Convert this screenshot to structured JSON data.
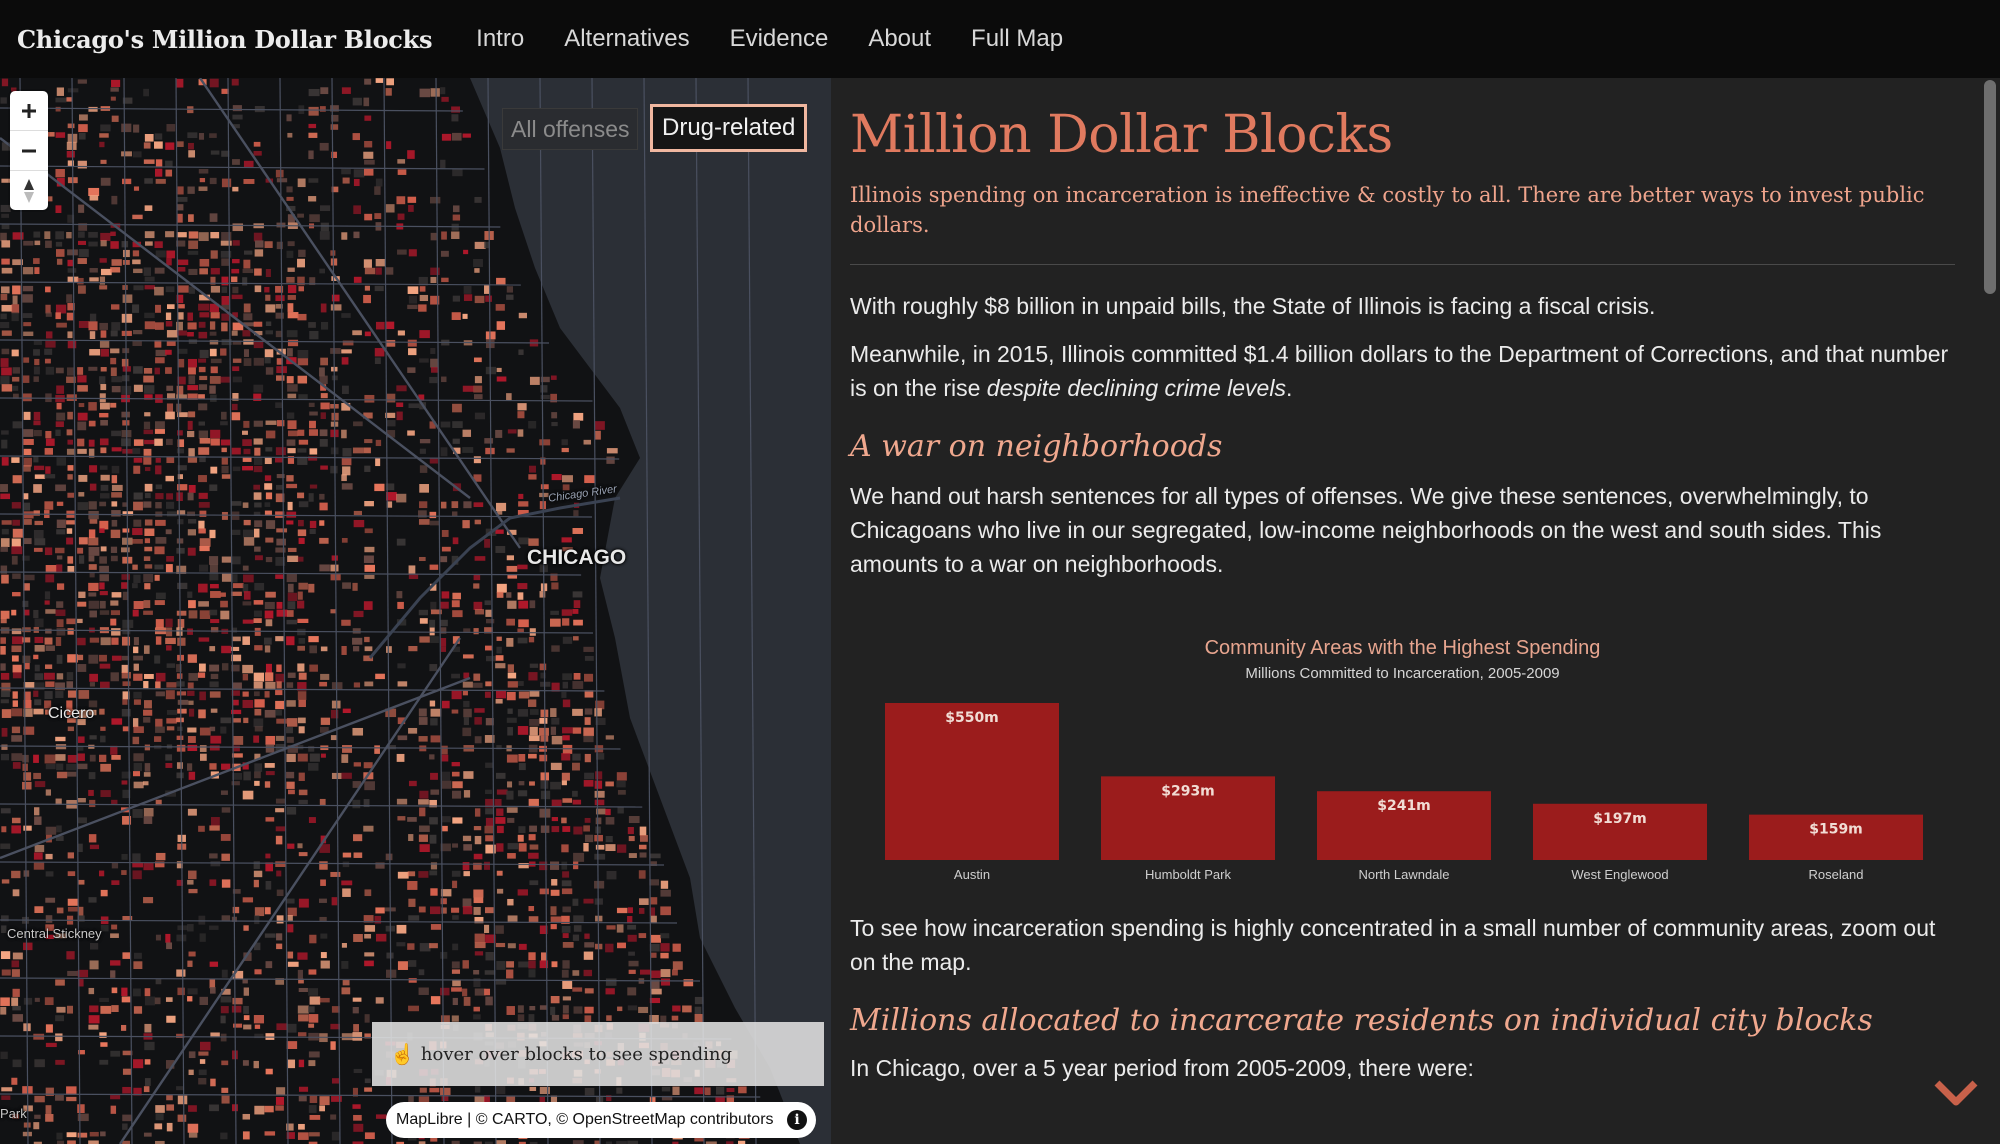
{
  "nav": {
    "brand": "Chicago's Million Dollar Blocks",
    "links": [
      "Intro",
      "Alternatives",
      "Evidence",
      "About",
      "Full Map"
    ]
  },
  "map": {
    "zoom_in_icon": "plus-icon",
    "zoom_out_icon": "minus-icon",
    "compass_icon": "compass-icon",
    "toggle_all": "All offenses",
    "toggle_drug": "Drug-related",
    "labels": {
      "chicago": "CHICAGO",
      "chicago_river": "Chicago River",
      "cicero": "Cicero",
      "central_stickney": "Central Stickney",
      "park": "Park"
    },
    "hover_hint": "hover over blocks to see spending",
    "attribution": "MapLibre | © CARTO, © OpenStreetMap contributors",
    "info_icon": "info-icon",
    "colors": {
      "block_light": "#f4a582",
      "block_mid": "#e8765c",
      "block_dark": "#d6604d",
      "block_red": "#b2182b",
      "water": "#2b2f36",
      "land": "#111214"
    }
  },
  "article": {
    "title": "Million Dollar Blocks",
    "subtitle": "Illinois spending on incarceration is ineffective & costly to all. There are better ways to invest public dollars.",
    "p1": "With roughly $8 billion in unpaid bills, the State of Illinois is facing a fiscal crisis.",
    "p2_start": "Meanwhile, in 2015, Illinois committed $1.4 billion dollars to the Department of Corrections, and that number is on the rise ",
    "p2_em": "despite declining crime levels",
    "p2_end": ".",
    "h2_war": "A war on neighborhoods",
    "p3": "We hand out harsh sentences for all types of offenses. We give these sentences, overwhelmingly, to Chicagoans who live in our segregated, low-income neighborhoods on the west and south sides. This amounts to a war on neighborhoods.",
    "p4": "To see how incarceration spending is highly concentrated in a small number of community areas, zoom out on the map.",
    "h2_millions": "Millions allocated to incarcerate residents on individual city blocks",
    "p5": "In Chicago, over a 5 year period from 2005-2009, there were:",
    "down_icon": "chevron-down-icon",
    "accent_color": "#e07a5f",
    "bar_color": "#9b1c1c"
  },
  "chart_data": {
    "type": "bar",
    "title": "Community Areas with the Highest Spending",
    "subtitle": "Millions Committed to Incarceration, 2005-2009",
    "categories": [
      "Austin",
      "Humboldt Park",
      "North Lawndale",
      "West Englewood",
      "Roseland"
    ],
    "values": [
      550,
      293,
      241,
      197,
      159
    ],
    "labels": [
      "$550m",
      "$293m",
      "$241m",
      "$197m",
      "$159m"
    ],
    "ylim": [
      0,
      550
    ],
    "grid": false
  }
}
